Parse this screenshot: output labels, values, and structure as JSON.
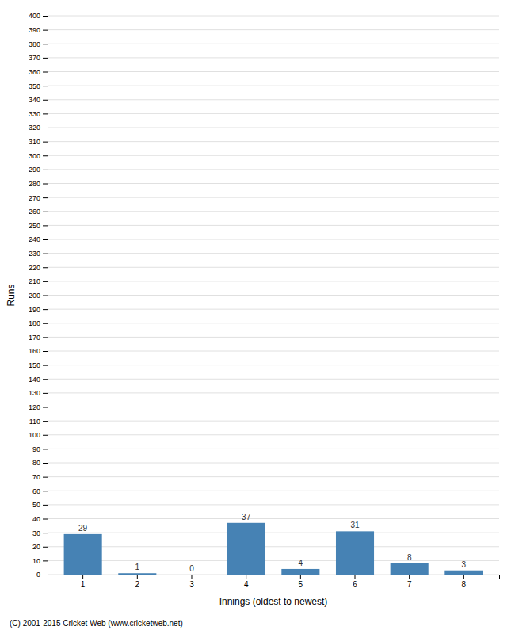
{
  "chart_data": {
    "type": "bar",
    "categories": [
      1,
      2,
      3,
      4,
      5,
      6,
      7,
      8
    ],
    "values": [
      29,
      1,
      0,
      37,
      4,
      31,
      8,
      3
    ],
    "xlabel": "Innings (oldest to newest)",
    "ylabel": "Runs",
    "ylim": [
      0,
      400
    ],
    "yticks": [
      0,
      10,
      20,
      30,
      40,
      50,
      60,
      70,
      80,
      90,
      100,
      110,
      120,
      130,
      140,
      150,
      160,
      170,
      180,
      190,
      200,
      210,
      220,
      230,
      240,
      250,
      260,
      270,
      280,
      290,
      300,
      310,
      320,
      330,
      340,
      350,
      360,
      370,
      380,
      390,
      400
    ],
    "grid": true,
    "data_labels": true,
    "footer": "(C) 2001-2015 Cricket Web (www.cricketweb.net)"
  }
}
